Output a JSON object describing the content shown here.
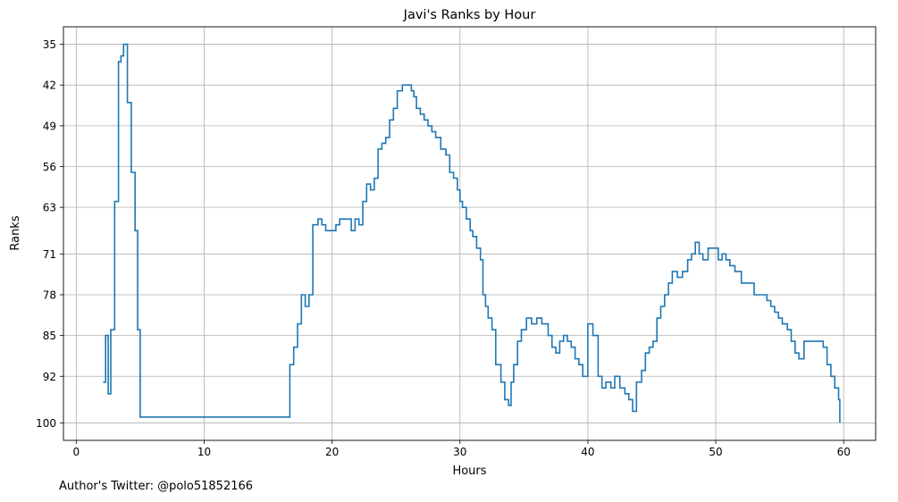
{
  "chart_data": {
    "type": "line",
    "title": "Javi's Ranks by Hour",
    "xlabel": "Hours",
    "ylabel": "Ranks",
    "xlim": [
      -1,
      62.5
    ],
    "ylim": [
      103,
      32
    ],
    "y_inverted": true,
    "step": "post",
    "grid": true,
    "line_color": "#1f77b4",
    "x_ticks": [
      0,
      10,
      20,
      30,
      40,
      50,
      60
    ],
    "y_ticks": [
      35,
      42,
      49,
      56,
      63,
      71,
      78,
      85,
      92,
      100
    ],
    "series": [
      {
        "points": [
          [
            2.1,
            93
          ],
          [
            2.3,
            85
          ],
          [
            2.5,
            95
          ],
          [
            2.7,
            84
          ],
          [
            3.0,
            62
          ],
          [
            3.3,
            38
          ],
          [
            3.5,
            37
          ],
          [
            3.7,
            35
          ],
          [
            4.0,
            45
          ],
          [
            4.3,
            57
          ],
          [
            4.6,
            67
          ],
          [
            4.8,
            84
          ],
          [
            5.0,
            99
          ],
          [
            16.7,
            90
          ],
          [
            17.0,
            87
          ],
          [
            17.3,
            83
          ],
          [
            17.6,
            78
          ],
          [
            17.9,
            80
          ],
          [
            18.2,
            78
          ],
          [
            18.5,
            66
          ],
          [
            18.9,
            65
          ],
          [
            19.2,
            66
          ],
          [
            19.5,
            67
          ],
          [
            20.0,
            67
          ],
          [
            20.3,
            66
          ],
          [
            20.6,
            65
          ],
          [
            21.2,
            65
          ],
          [
            21.5,
            67
          ],
          [
            21.8,
            65
          ],
          [
            22.1,
            66
          ],
          [
            22.4,
            62
          ],
          [
            22.7,
            59
          ],
          [
            23.0,
            60
          ],
          [
            23.3,
            58
          ],
          [
            23.6,
            53
          ],
          [
            23.9,
            52
          ],
          [
            24.2,
            51
          ],
          [
            24.5,
            48
          ],
          [
            24.8,
            46
          ],
          [
            25.1,
            43
          ],
          [
            25.5,
            42
          ],
          [
            26.0,
            42
          ],
          [
            26.2,
            43
          ],
          [
            26.4,
            44
          ],
          [
            26.6,
            46
          ],
          [
            26.9,
            47
          ],
          [
            27.2,
            48
          ],
          [
            27.5,
            49
          ],
          [
            27.8,
            50
          ],
          [
            28.1,
            51
          ],
          [
            28.5,
            53
          ],
          [
            28.9,
            54
          ],
          [
            29.2,
            57
          ],
          [
            29.5,
            58
          ],
          [
            29.8,
            60
          ],
          [
            30.0,
            62
          ],
          [
            30.2,
            63
          ],
          [
            30.5,
            65
          ],
          [
            30.8,
            67
          ],
          [
            31.0,
            68
          ],
          [
            31.3,
            70
          ],
          [
            31.6,
            72
          ],
          [
            31.8,
            78
          ],
          [
            32.0,
            80
          ],
          [
            32.2,
            82
          ],
          [
            32.5,
            84
          ],
          [
            32.8,
            90
          ],
          [
            33.2,
            93
          ],
          [
            33.5,
            96
          ],
          [
            33.8,
            97
          ],
          [
            34.0,
            93
          ],
          [
            34.2,
            90
          ],
          [
            34.5,
            86
          ],
          [
            34.8,
            84
          ],
          [
            35.2,
            82
          ],
          [
            35.6,
            83
          ],
          [
            36.0,
            82
          ],
          [
            36.4,
            83
          ],
          [
            36.9,
            85
          ],
          [
            37.2,
            87
          ],
          [
            37.5,
            88
          ],
          [
            37.8,
            86
          ],
          [
            38.1,
            85
          ],
          [
            38.4,
            86
          ],
          [
            38.7,
            87
          ],
          [
            39.0,
            89
          ],
          [
            39.3,
            90
          ],
          [
            39.6,
            92
          ],
          [
            40.0,
            83
          ],
          [
            40.4,
            85
          ],
          [
            40.8,
            92
          ],
          [
            41.1,
            94
          ],
          [
            41.4,
            93
          ],
          [
            41.8,
            94
          ],
          [
            42.1,
            92
          ],
          [
            42.5,
            94
          ],
          [
            42.9,
            95
          ],
          [
            43.2,
            96
          ],
          [
            43.5,
            98
          ],
          [
            43.8,
            93
          ],
          [
            44.2,
            91
          ],
          [
            44.5,
            88
          ],
          [
            44.8,
            87
          ],
          [
            45.1,
            86
          ],
          [
            45.4,
            82
          ],
          [
            45.7,
            80
          ],
          [
            46.0,
            78
          ],
          [
            46.3,
            76
          ],
          [
            46.6,
            74
          ],
          [
            47.0,
            75
          ],
          [
            47.4,
            74
          ],
          [
            47.8,
            72
          ],
          [
            48.1,
            71
          ],
          [
            48.4,
            69
          ],
          [
            48.7,
            71
          ],
          [
            49.0,
            72
          ],
          [
            49.4,
            70
          ],
          [
            49.8,
            70
          ],
          [
            50.2,
            72
          ],
          [
            50.5,
            71
          ],
          [
            50.8,
            72
          ],
          [
            51.1,
            73
          ],
          [
            51.5,
            74
          ],
          [
            52.0,
            76
          ],
          [
            52.6,
            76
          ],
          [
            53.0,
            78
          ],
          [
            53.5,
            78
          ],
          [
            54.0,
            79
          ],
          [
            54.3,
            80
          ],
          [
            54.6,
            81
          ],
          [
            54.9,
            82
          ],
          [
            55.2,
            83
          ],
          [
            55.6,
            84
          ],
          [
            55.9,
            86
          ],
          [
            56.2,
            88
          ],
          [
            56.5,
            89
          ],
          [
            56.9,
            86
          ],
          [
            57.2,
            86
          ],
          [
            57.6,
            86
          ],
          [
            58.0,
            86
          ],
          [
            58.4,
            87
          ],
          [
            58.7,
            90
          ],
          [
            59.0,
            92
          ],
          [
            59.3,
            94
          ],
          [
            59.6,
            96
          ],
          [
            59.7,
            100
          ]
        ]
      }
    ]
  },
  "footer": {
    "text": "Author's Twitter: @polo51852166"
  }
}
